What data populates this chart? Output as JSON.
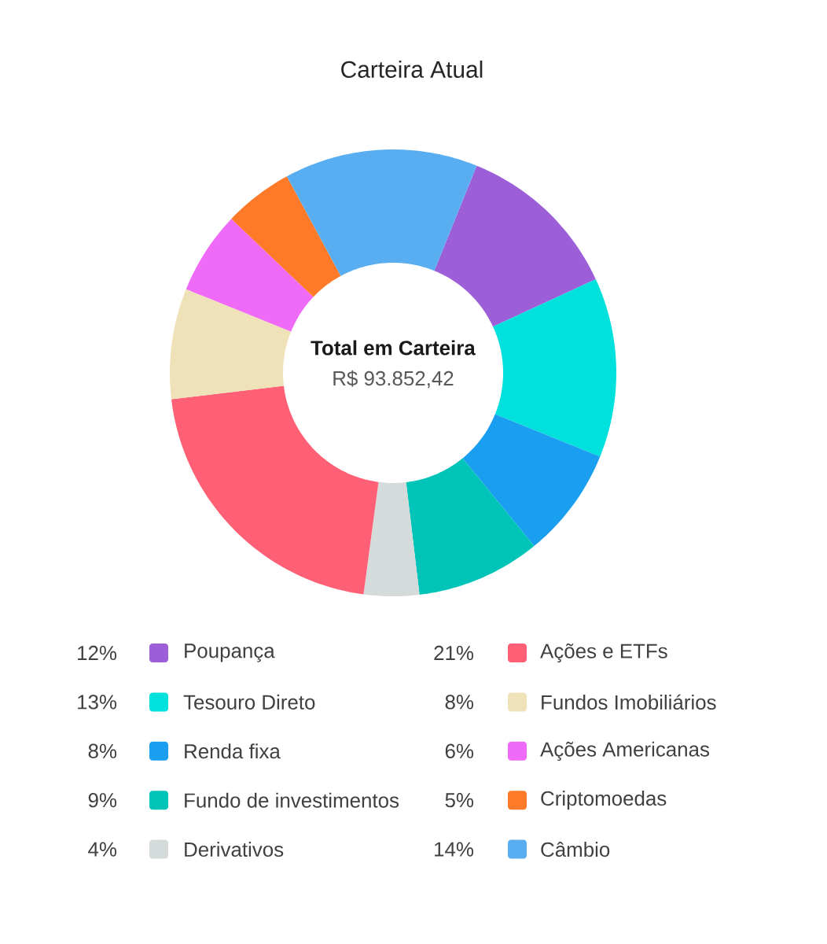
{
  "chart_data": {
    "type": "donut",
    "title": "Carteira Atual",
    "categories": [
      "Poupança",
      "Tesouro Direto",
      "Renda fixa",
      "Fundo de investimentos",
      "Derivativos",
      "Ações e ETFs",
      "Fundos Imobiliários",
      "Ações Americanas",
      "Criptomoedas",
      "Câmbio"
    ],
    "values": [
      12,
      13,
      8,
      9,
      4,
      21,
      8,
      6,
      5,
      14
    ],
    "value_labels": [
      "12%",
      "13%",
      "8%",
      "9%",
      "4%",
      "21%",
      "8%",
      "6%",
      "5%",
      "14%"
    ],
    "colors": [
      "#9c5fd8",
      "#00e0dc",
      "#1a9ff0",
      "#00c4b8",
      "#d5dadb",
      "#ff6075",
      "#efe2b8",
      "#ef6af7",
      "#ff7a28",
      "#58aef0"
    ],
    "annotations": [
      "**Total em Carteira**",
      "R$ 93.852,42"
    ],
    "legend": "bottom"
  }
}
